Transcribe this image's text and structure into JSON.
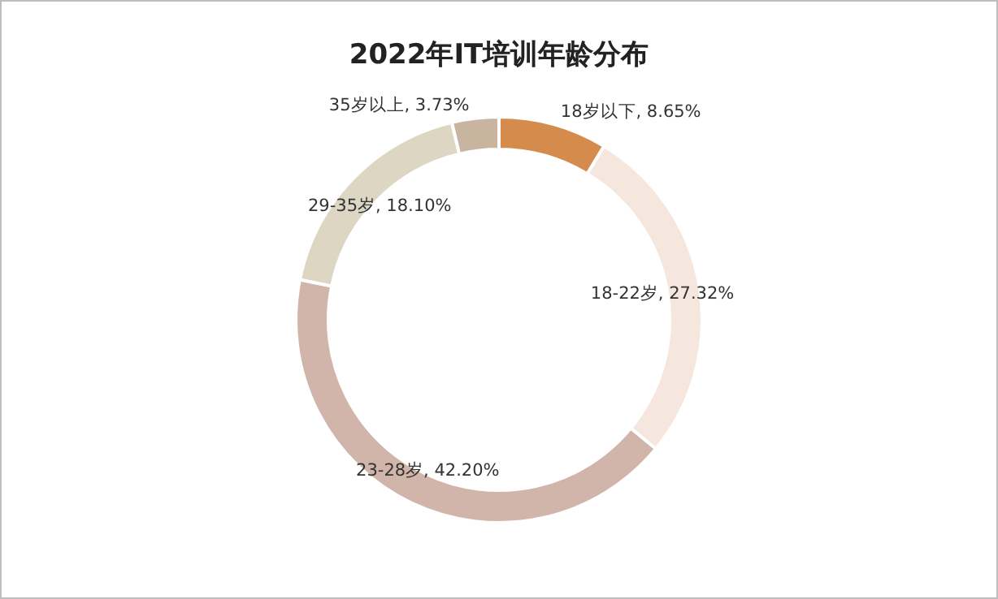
{
  "chart_data": {
    "type": "donut",
    "title": "2022年IT培训年龄分布",
    "categories": [
      "18岁以下",
      "18-22岁",
      "23-28岁",
      "29-35岁",
      "35岁以上"
    ],
    "values": [
      8.65,
      27.32,
      42.2,
      18.1,
      3.73
    ],
    "value_labels": [
      "8.65%",
      "27.32%",
      "42.20%",
      "18.10%",
      "3.73%"
    ],
    "colors": [
      "#d58b4c",
      "#f5e7dd",
      "#d1b5aa",
      "#ddd6c2",
      "#c8b49f"
    ]
  }
}
